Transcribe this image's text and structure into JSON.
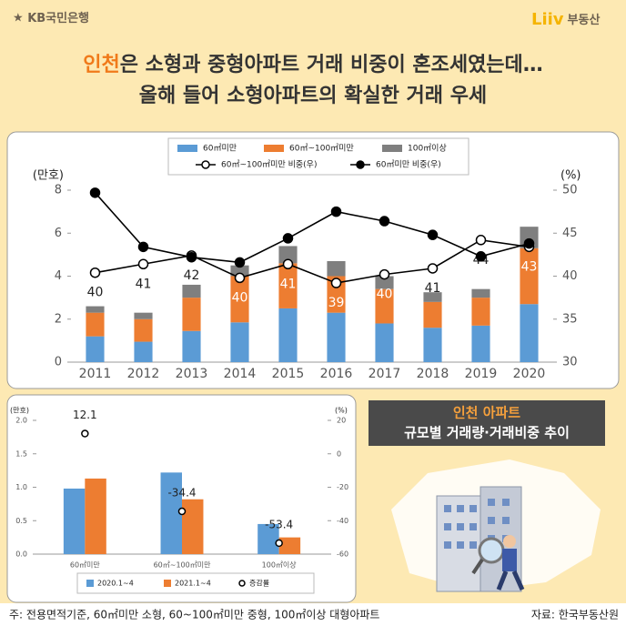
{
  "header": {
    "bank": "KB국민은행",
    "brand": "Liiv",
    "brand_sub": "부동산",
    "title_highlight": "인천",
    "title_rest": "은 소형과 중형아파트 거래 비중이 혼조세였는데…",
    "title_line2": "올해 들어 소형아파트의 확실한 거래 우세"
  },
  "badge": {
    "title": "인천 아파트",
    "subtitle": "규모별 거래량·거래비중 추이"
  },
  "footer": {
    "note": "주: 전용면적기준, 60㎡미만 소형, 60~100㎡미만 중형, 100㎡이상 대형아파트",
    "source": "자료: 한국부동산원"
  },
  "chart_data": [
    {
      "type": "bar",
      "stacked": true,
      "categories": [
        "2011",
        "2012",
        "2013",
        "2014",
        "2015",
        "2016",
        "2017",
        "2018",
        "2019",
        "2020"
      ],
      "y_label": "(만호)",
      "y2_label": "(%)",
      "ylim": [
        0,
        8
      ],
      "yticks": [
        0,
        2,
        4,
        6,
        8
      ],
      "y2lim": [
        30,
        50
      ],
      "y2ticks": [
        30,
        35,
        40,
        45,
        50
      ],
      "grid": false,
      "series": [
        {
          "name": "60㎡미만",
          "color": "#5b9bd5",
          "values": [
            1.2,
            0.95,
            1.45,
            1.85,
            2.5,
            2.3,
            1.8,
            1.6,
            1.7,
            2.7
          ]
        },
        {
          "name": "60㎡~100㎡미만",
          "color": "#ed7d31",
          "values": [
            1.1,
            1.05,
            1.55,
            2.15,
            2.1,
            1.7,
            1.6,
            1.2,
            1.3,
            2.6
          ]
        },
        {
          "name": "100㎡이상",
          "color": "#7f7f7f",
          "values": [
            0.3,
            0.3,
            0.6,
            0.5,
            0.8,
            0.7,
            0.6,
            0.45,
            0.4,
            1.0
          ]
        },
        {
          "name": "60㎡~100㎡미만 비중(우)",
          "type": "line",
          "axis": "y2",
          "color": "#000000",
          "marker_fill": "#ffffff",
          "values": [
            40.4,
            41.4,
            42.4,
            39.8,
            41.4,
            39.2,
            40.2,
            40.9,
            44.2,
            43.4
          ],
          "value_labels": [
            "40",
            "41",
            "42",
            "40",
            "41",
            "39",
            "40",
            "41",
            "44",
            "43"
          ]
        },
        {
          "name": "60㎡미만 비중(우)",
          "type": "line",
          "axis": "y2",
          "color": "#000000",
          "marker_fill": "#000000",
          "values": [
            49.7,
            43.4,
            42.2,
            41.6,
            44.4,
            47.5,
            46.4,
            44.8,
            42.3,
            43.8
          ]
        }
      ]
    },
    {
      "type": "bar",
      "stacked": false,
      "categories": [
        "60㎡미만",
        "60㎡~100㎡미만",
        "100㎡이상"
      ],
      "y_label": "(만호)",
      "y2_label": "(%)",
      "ylim": [
        0,
        2
      ],
      "yticks": [
        {
          "value": 0,
          "label": "0.0"
        },
        {
          "value": 0.5,
          "label": "0.5"
        },
        {
          "value": 1,
          "label": "1.0"
        },
        {
          "value": 1.5,
          "label": "1.5"
        },
        {
          "value": 2,
          "label": "2.0"
        }
      ],
      "y2lim": [
        -60,
        20
      ],
      "y2ticks": [
        20,
        0,
        -20,
        -40,
        -60
      ],
      "grid": false,
      "series": [
        {
          "name": "2020.1~4",
          "color": "#5b9bd5",
          "values": [
            0.98,
            1.22,
            0.45
          ]
        },
        {
          "name": "2021.1~4",
          "color": "#ed7d31",
          "values": [
            1.13,
            0.82,
            0.25
          ]
        },
        {
          "name": "증감률",
          "type": "scatter",
          "axis": "y2",
          "color": "#000000",
          "marker_fill": "#ffffff",
          "values": [
            12.1,
            -34.4,
            -53.4
          ]
        }
      ]
    }
  ]
}
